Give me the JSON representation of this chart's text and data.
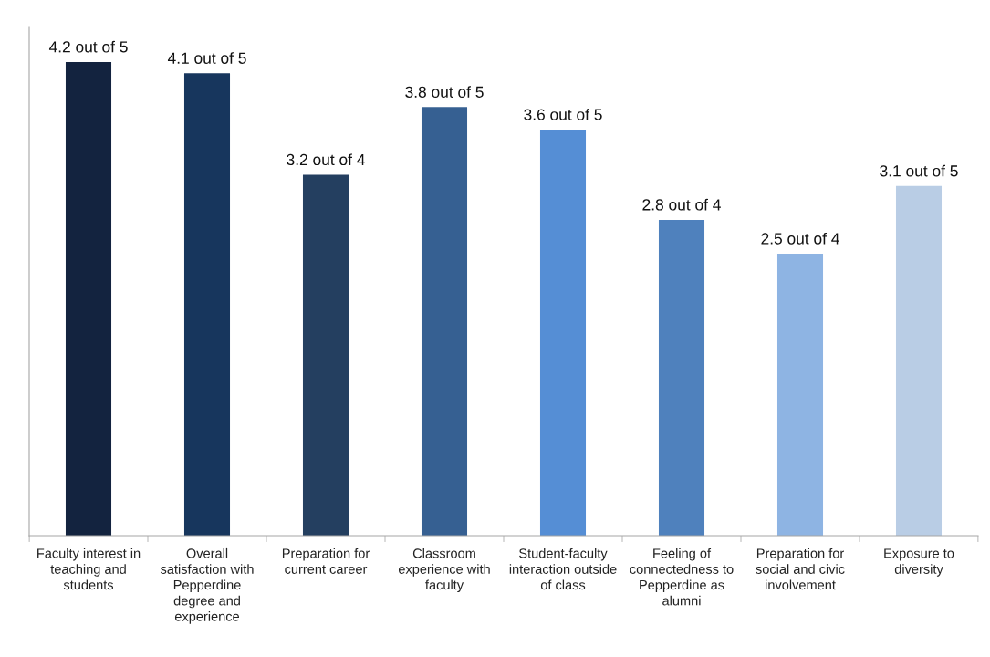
{
  "chart_data": {
    "type": "bar",
    "categories": [
      "Faculty interest in teaching and students",
      "Overall satisfaction with Pepperdine degree and experience",
      "Preparation for current career",
      "Classroom experience with faculty",
      "Student-faculty interaction outside of class",
      "Feeling of connectedness to Pepperdine as alumni",
      "Preparation for social and civic involvement",
      "Exposure to diversity"
    ],
    "values": [
      4.2,
      4.1,
      3.2,
      3.8,
      3.6,
      2.8,
      2.5,
      3.1
    ],
    "colors": [
      "#13233f",
      "#17365d",
      "#243f60",
      "#366092",
      "#558ed5",
      "#4f81bd",
      "#8eb4e3",
      "#b9cde5"
    ],
    "value_labels": [
      "4.2 out of 5",
      "4.1 out of 5",
      "3.2 out of 4",
      "3.8 out of 5",
      "3.6 out of 5",
      "2.8 out of 4",
      "2.5 out of 4",
      "3.1 out of 5"
    ]
  }
}
